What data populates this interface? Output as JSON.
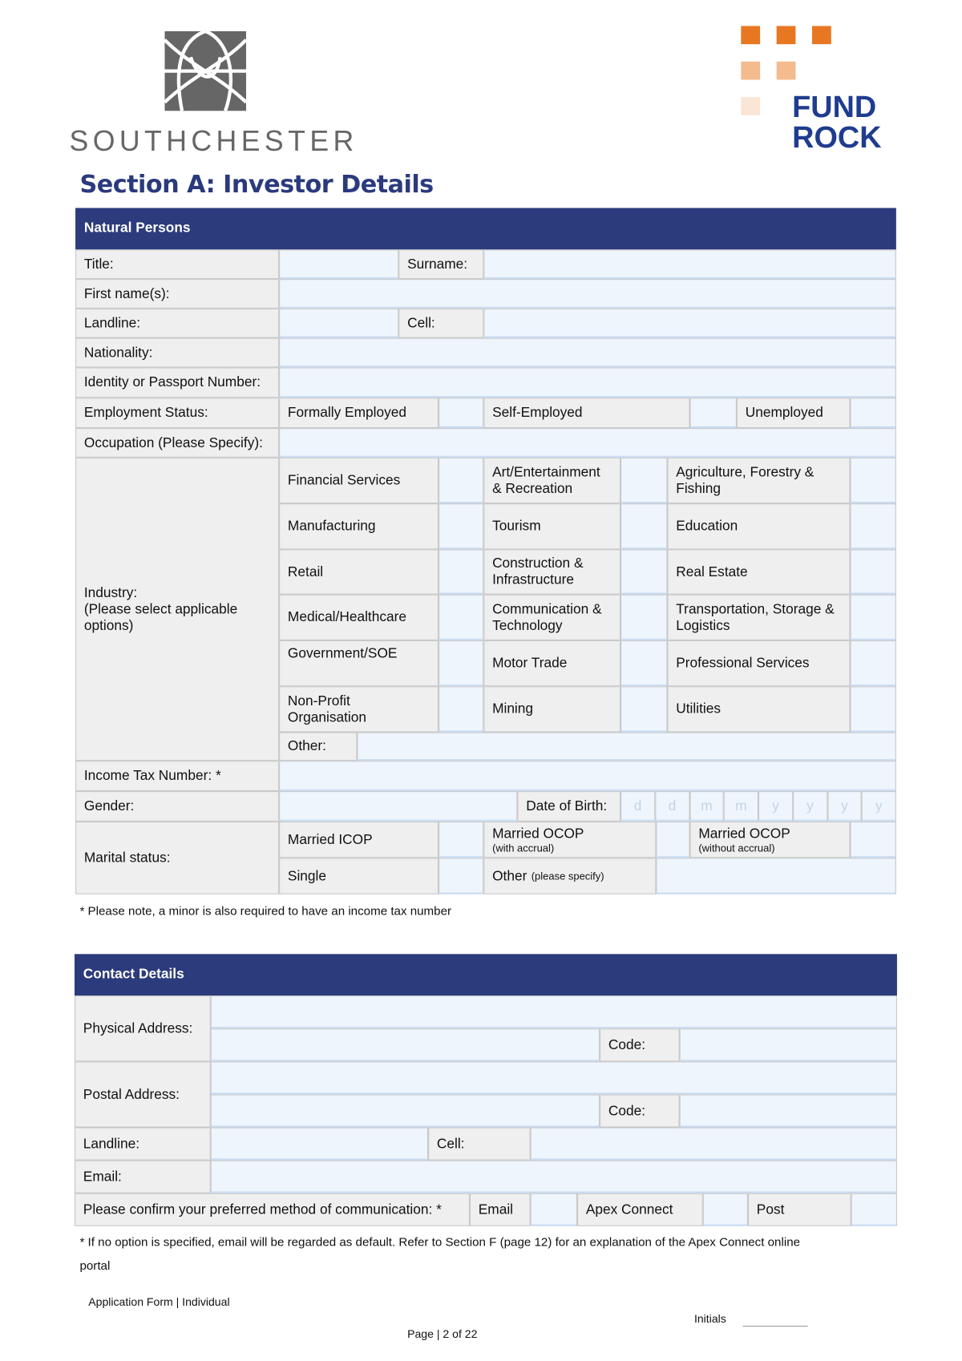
{
  "logos": {
    "left": "SOUTHCHESTER",
    "right_line1": "FUND",
    "right_line2": "ROCK",
    "brand_gray": "#666666",
    "brand_blue": "#1f3c8f",
    "brand_orange": "#e87722"
  },
  "section_title": "Section A: Investor Details",
  "natural_persons": {
    "header": "Natural Persons",
    "title_label": "Title:",
    "surname_label": "Surname:",
    "first_names_label": "First name(s):",
    "landline_label": "Landline:",
    "cell_label": "Cell:",
    "nationality_label": "Nationality:",
    "id_label": "Identity or Passport Number:",
    "employment_label": "Employment Status:",
    "employment_options": [
      "Formally Employed",
      "Self-Employed",
      "Unemployed"
    ],
    "occupation_label": "Occupation (Please Specify):",
    "industry_label": "Industry:\n(Please select applicable options)",
    "industries": [
      "Financial Services",
      "Art/Entertainment & Recreation",
      "Agriculture, Forestry & Fishing",
      "Manufacturing",
      "Tourism",
      "Education",
      "Retail",
      "Construction & Infrastructure",
      "Real Estate",
      "Medical/Healthcare",
      "Communication & Technology",
      "Transportation, Storage & Logistics",
      "Government/SOE",
      "Motor Trade",
      "Professional Services",
      "Non-Profit Organisation",
      "Mining",
      "Utilities"
    ],
    "other_label": "Other:",
    "income_tax_label": "Income Tax Number: *",
    "gender_label": "Gender:",
    "dob_label": "Date of Birth:",
    "dob_placeholders": [
      "d",
      "d",
      "m",
      "m",
      "y",
      "y",
      "y",
      "y"
    ],
    "marital_label": "Marital status:",
    "married_icop": "Married ICOP",
    "married_ocop": "Married OCOP",
    "with_accrual": "(with accrual)",
    "without_accrual": "(without accrual)",
    "single": "Single",
    "other": "Other",
    "please_specify": "(please specify)",
    "note": "* Please note, a minor is also required to have an income tax number"
  },
  "contact": {
    "header": "Contact Details",
    "physical_label": "Physical Address:",
    "postal_label": "Postal Address:",
    "code_label": "Code:",
    "landline_label": "Landline:",
    "cell_label": "Cell:",
    "email_label": "Email:",
    "pref_label": "Please confirm your preferred method of communication: *",
    "pref_options": [
      "Email",
      "Apex Connect",
      "Post"
    ],
    "note_line1": "* If no option is specified, email will be regarded as default. Refer to Section F (page 12) for an explanation of the Apex Connect online",
    "note_line2": "portal"
  },
  "footer": {
    "form_name": "Application Form | Individual",
    "initials_label": "Initials",
    "page": "Page | 2 of 22"
  }
}
